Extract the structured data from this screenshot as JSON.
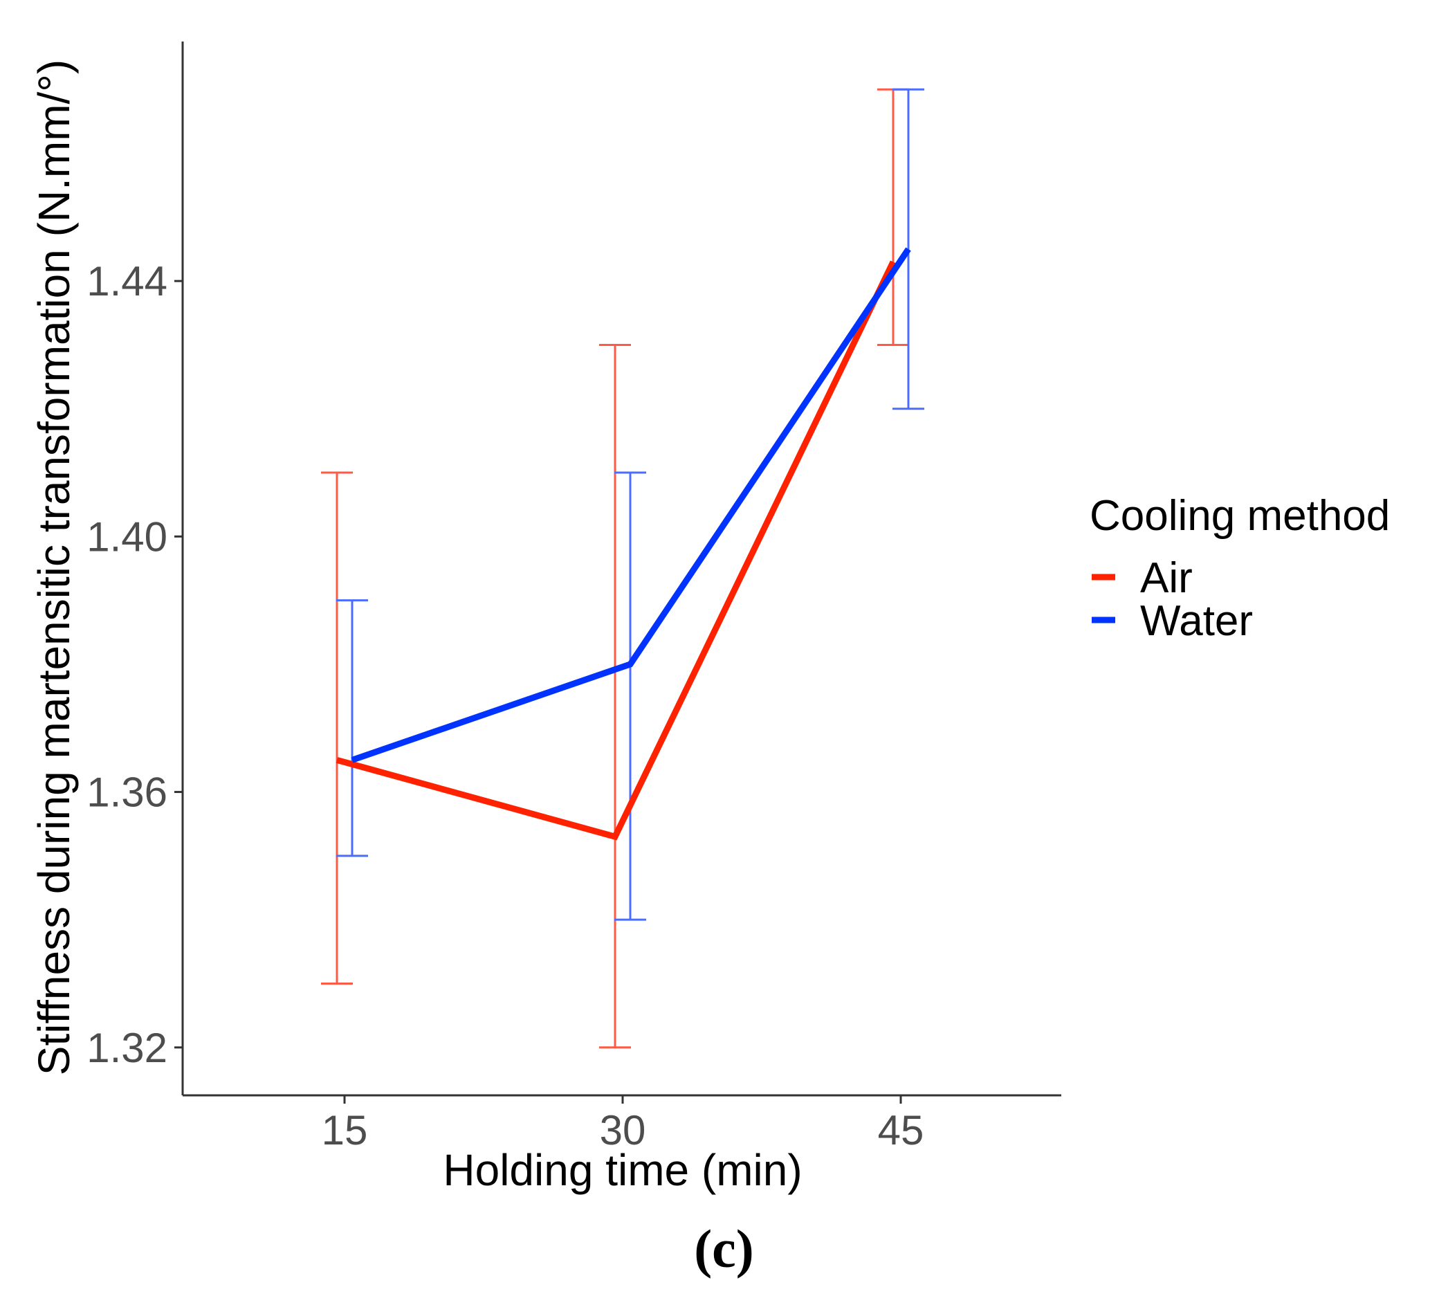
{
  "chart_data": {
    "type": "line",
    "title": "",
    "xlabel": "Holding time (min)",
    "ylabel": "Stiffness during martensitic transformation (N.mm/°)",
    "categories": [
      "15",
      "30",
      "45"
    ],
    "y_ticks": [
      "1.32",
      "1.36",
      "1.40",
      "1.44"
    ],
    "ylim": [
      1.3125,
      1.4775
    ],
    "legend_title": "Cooling method",
    "legend_position": "right",
    "grid": false,
    "series": [
      {
        "name": "Air",
        "color": "#ff2200",
        "values": [
          1.365,
          1.353,
          1.443
        ],
        "error_low": [
          1.33,
          1.32,
          1.43
        ],
        "error_high": [
          1.41,
          1.43,
          1.47
        ]
      },
      {
        "name": "Water",
        "color": "#0033ff",
        "values": [
          1.365,
          1.38,
          1.445
        ],
        "error_low": [
          1.35,
          1.34,
          1.42
        ],
        "error_high": [
          1.39,
          1.41,
          1.47
        ]
      }
    ]
  },
  "panel_label": "(c)"
}
